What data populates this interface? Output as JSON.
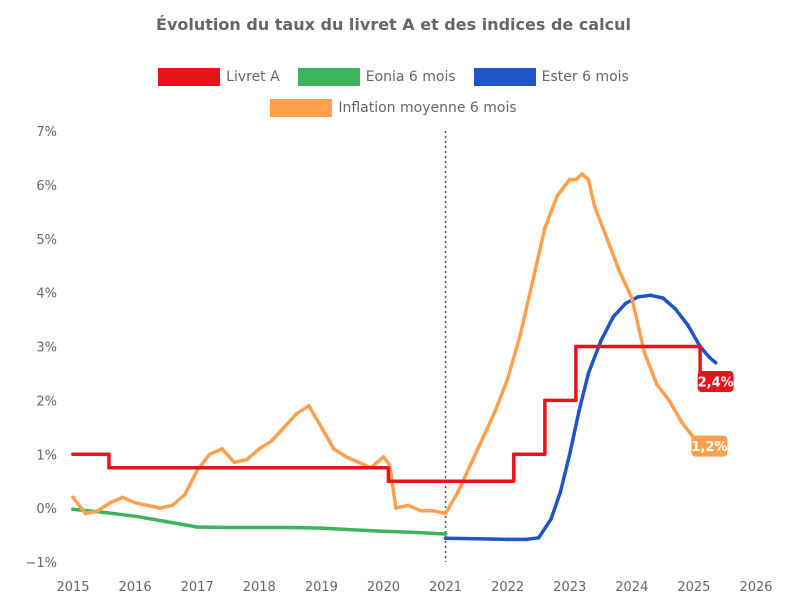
{
  "chart_data": {
    "type": "line",
    "title": "Évolution du taux du livret A et des indices de calcul",
    "xlabel": "",
    "ylabel": "",
    "xlim": [
      2015,
      2026
    ],
    "ylim": [
      -1,
      7
    ],
    "x_ticks": [
      "2015",
      "2016",
      "2017",
      "2018",
      "2019",
      "2020",
      "2021",
      "2022",
      "2023",
      "2024",
      "2025",
      "2026"
    ],
    "y_ticks": [
      "−1%",
      "0%",
      "1%",
      "2%",
      "3%",
      "4%",
      "5%",
      "6%",
      "7%"
    ],
    "grid": false,
    "legend_position": "top",
    "vertical_marker": {
      "x": 2021.0,
      "style": "dotted"
    },
    "series": [
      {
        "name": "Livret A",
        "color": "#e8141b",
        "step": true,
        "x": [
          2015.0,
          2015.58,
          2020.08,
          2022.1,
          2022.6,
          2023.1,
          2025.1,
          2025.1
        ],
        "values": [
          1.0,
          0.75,
          0.5,
          1.0,
          2.0,
          3.0,
          3.0,
          2.4
        ]
      },
      {
        "name": "Eonia 6 mois",
        "color": "#3cb35c",
        "x": [
          2015.0,
          2015.5,
          2016.0,
          2016.5,
          2017.0,
          2017.5,
          2018.0,
          2018.5,
          2019.0,
          2019.5,
          2020.0,
          2020.5,
          2021.0
        ],
        "values": [
          -0.02,
          -0.08,
          -0.15,
          -0.25,
          -0.35,
          -0.36,
          -0.36,
          -0.36,
          -0.37,
          -0.4,
          -0.43,
          -0.45,
          -0.48
        ]
      },
      {
        "name": "Ester 6 mois",
        "color": "#1f55c8",
        "x": [
          2021.0,
          2021.5,
          2022.0,
          2022.3,
          2022.5,
          2022.7,
          2022.85,
          2023.0,
          2023.15,
          2023.3,
          2023.5,
          2023.7,
          2023.9,
          2024.1,
          2024.3,
          2024.5,
          2024.7,
          2024.9,
          2025.1,
          2025.25,
          2025.35
        ],
        "values": [
          -0.56,
          -0.57,
          -0.58,
          -0.58,
          -0.55,
          -0.2,
          0.3,
          1.0,
          1.8,
          2.5,
          3.1,
          3.55,
          3.8,
          3.92,
          3.95,
          3.9,
          3.7,
          3.4,
          3.0,
          2.8,
          2.7
        ]
      },
      {
        "name": "Inflation moyenne 6 mois",
        "color": "#ffa04f",
        "x": [
          2015.0,
          2015.2,
          2015.4,
          2015.6,
          2015.8,
          2016.0,
          2016.2,
          2016.4,
          2016.6,
          2016.8,
          2017.0,
          2017.2,
          2017.4,
          2017.6,
          2017.8,
          2018.0,
          2018.2,
          2018.4,
          2018.6,
          2018.8,
          2019.0,
          2019.2,
          2019.4,
          2019.6,
          2019.8,
          2020.0,
          2020.1,
          2020.2,
          2020.4,
          2020.6,
          2020.8,
          2021.0,
          2021.2,
          2021.4,
          2021.6,
          2021.8,
          2022.0,
          2022.2,
          2022.4,
          2022.6,
          2022.8,
          2023.0,
          2023.1,
          2023.2,
          2023.3,
          2023.4,
          2023.6,
          2023.8,
          2024.0,
          2024.2,
          2024.4,
          2024.6,
          2024.8,
          2025.0,
          2025.05
        ],
        "values": [
          0.2,
          -0.1,
          -0.05,
          0.1,
          0.2,
          0.1,
          0.05,
          0.0,
          0.05,
          0.25,
          0.7,
          1.0,
          1.1,
          0.85,
          0.9,
          1.1,
          1.25,
          1.5,
          1.75,
          1.9,
          1.5,
          1.1,
          0.95,
          0.85,
          0.75,
          0.95,
          0.8,
          0.0,
          0.05,
          -0.05,
          -0.05,
          -0.1,
          0.3,
          0.8,
          1.3,
          1.8,
          2.4,
          3.2,
          4.2,
          5.2,
          5.8,
          6.1,
          6.1,
          6.2,
          6.1,
          5.6,
          5.0,
          4.4,
          3.9,
          2.9,
          2.3,
          2.0,
          1.6,
          1.3,
          1.2
        ]
      }
    ],
    "annotations": [
      {
        "text": "2,4%",
        "x": 2025.35,
        "y": 2.35,
        "color": "#e8141b"
      },
      {
        "text": "1,2%",
        "x": 2025.25,
        "y": 1.15,
        "color": "#ffa04f"
      }
    ]
  }
}
